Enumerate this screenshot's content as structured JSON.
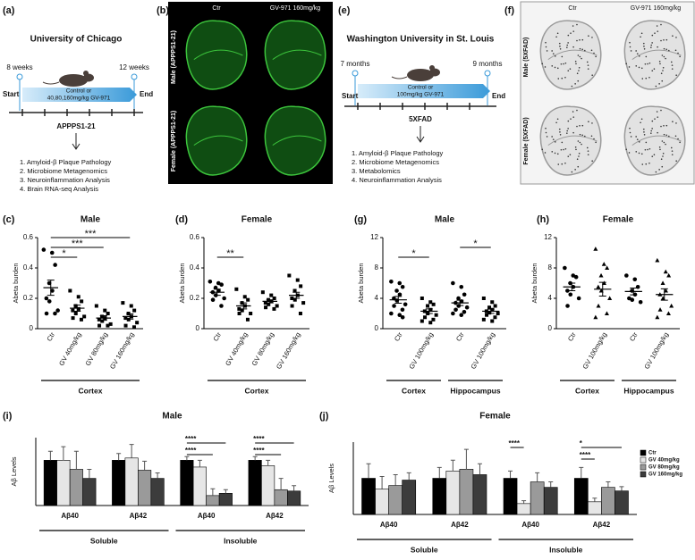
{
  "panels": {
    "a": {
      "label": "(a)",
      "title": "University of Chicago",
      "start_time": "8 weeks",
      "end_time": "12 weeks",
      "start": "Start",
      "end": "End",
      "treatment": [
        "Control or",
        "40,80,160mg/kg GV-971"
      ],
      "model": "APPPS1-21",
      "analyses": [
        "1.  Amyloid-β Plaque Pathology",
        "2.  Microbiome Metagenomics",
        "3.  Neuroinflammation Analysis",
        "4.  Brain RNA-seq Analysis"
      ]
    },
    "b": {
      "label": "(b)",
      "columns": [
        "Ctr",
        "GV-971 160mg/kg"
      ],
      "rows": [
        "Male (APPPS1-21)",
        "Female (APPPS1-21)"
      ]
    },
    "e": {
      "label": "(e)",
      "title": "Washington University in St. Louis",
      "start_time": "7 months",
      "end_time": "9 months",
      "start": "Start",
      "end": "End",
      "treatment": [
        "Control or",
        "100mg/kg GV-971"
      ],
      "model": "5XFAD",
      "analyses": [
        "1.  Amyloid-β Plaque Pathology",
        "2.  Microbiome Metagenomics",
        "3.  Metabolomics",
        "4.  Neuroinflammation Analysis"
      ]
    },
    "f": {
      "label": "(f)",
      "columns": [
        "Ctr",
        "GV-971 160mg/kg"
      ],
      "rows": [
        "Male (5XFAD)",
        "Female (5XFAD)"
      ]
    }
  },
  "chart_data": [
    {
      "type": "strip",
      "label": "(c)",
      "title": "Male",
      "ylabel": "Abeta burden",
      "ylim": [
        0,
        0.6
      ],
      "yticks": [
        0,
        0.2,
        0.4,
        0.6
      ],
      "categories": [
        "Ctr",
        "GV 40mg/kg",
        "GV 80mg/kg",
        "GV 160mg/kg"
      ],
      "sections": [
        "Cortex"
      ],
      "markers": [
        "circle",
        "square",
        "square",
        "square"
      ],
      "groups": [
        [
          0.52,
          0.5,
          0.42,
          0.3,
          0.25,
          0.2,
          0.18,
          0.12,
          0.1,
          0.1
        ],
        [
          0.25,
          0.21,
          0.18,
          0.15,
          0.13,
          0.12,
          0.1,
          0.08,
          0.07,
          0.06
        ],
        [
          0.15,
          0.12,
          0.1,
          0.08,
          0.07,
          0.06,
          0.05,
          0.03,
          0.02,
          0.02
        ],
        [
          0.17,
          0.15,
          0.12,
          0.1,
          0.08,
          0.07,
          0.06,
          0.04,
          0.02,
          0.01
        ]
      ],
      "means": [
        0.27,
        0.135,
        0.07,
        0.08
      ],
      "errors": [
        0.05,
        0.02,
        0.015,
        0.017
      ],
      "brackets": [
        {
          "from": 0,
          "to": 1,
          "label": "*"
        },
        {
          "from": 0,
          "to": 2,
          "label": "***"
        },
        {
          "from": 0,
          "to": 3,
          "label": "***"
        }
      ]
    },
    {
      "type": "strip",
      "label": "(d)",
      "title": "Female",
      "ylabel": "Abeta burden",
      "ylim": [
        0,
        0.6
      ],
      "yticks": [
        0,
        0.2,
        0.4,
        0.6
      ],
      "categories": [
        "Ctr",
        "GV 40mg/kg",
        "GV 80mg/kg",
        "GV 160mg/kg"
      ],
      "sections": [
        "Cortex"
      ],
      "markers": [
        "circle",
        "square",
        "square",
        "square"
      ],
      "groups": [
        [
          0.31,
          0.3,
          0.29,
          0.27,
          0.25,
          0.24,
          0.22,
          0.2,
          0.19,
          0.15
        ],
        [
          0.26,
          0.21,
          0.19,
          0.17,
          0.15,
          0.13,
          0.12,
          0.1,
          0.1,
          0.06
        ],
        [
          0.24,
          0.22,
          0.2,
          0.19,
          0.18,
          0.17,
          0.16,
          0.15,
          0.14,
          0.13
        ],
        [
          0.35,
          0.32,
          0.28,
          0.25,
          0.22,
          0.2,
          0.19,
          0.17,
          0.15,
          0.1
        ]
      ],
      "means": [
        0.24,
        0.15,
        0.18,
        0.22
      ],
      "errors": [
        0.02,
        0.02,
        0.01,
        0.02
      ],
      "brackets": [
        {
          "from": 0,
          "to": 1,
          "label": "**"
        }
      ]
    },
    {
      "type": "strip",
      "label": "(g)",
      "title": "Male",
      "ylabel": "Abeta burden",
      "ylim": [
        0,
        12
      ],
      "yticks": [
        0,
        4,
        8,
        12
      ],
      "categories": [
        "Ctr",
        "GV 100mg/kg",
        "Ctr",
        "GV 100mg/kg"
      ],
      "sections": [
        "Cortex",
        "Hippocampus"
      ],
      "markers": [
        "circle",
        "square",
        "circle",
        "square"
      ],
      "groups": [
        [
          6.2,
          6,
          5.5,
          5,
          4.5,
          4,
          3.7,
          3.2,
          3,
          2.5,
          2,
          1.8,
          1.5
        ],
        [
          4,
          3.5,
          3.2,
          3,
          2.5,
          2.3,
          2,
          1.8,
          1.5,
          1.2,
          1,
          0.8
        ],
        [
          6,
          5.5,
          4.5,
          4,
          3.6,
          3.4,
          3,
          2.8,
          2.5,
          2.2,
          2,
          1.8
        ],
        [
          4,
          3.5,
          3,
          2.8,
          2.5,
          2.3,
          2.1,
          2,
          1.8,
          1.5,
          1.2,
          1
        ]
      ],
      "means": [
        3.8,
        2.3,
        3.4,
        2.3
      ],
      "errors": [
        0.45,
        0.3,
        0.35,
        0.28
      ],
      "brackets": [
        {
          "from": 0,
          "to": 1,
          "label": "*"
        },
        {
          "from": 2,
          "to": 3,
          "label": "*"
        }
      ]
    },
    {
      "type": "strip",
      "label": "(h)",
      "title": "Female",
      "ylabel": "Abeta burden",
      "ylim": [
        0,
        12
      ],
      "yticks": [
        0,
        4,
        8,
        12
      ],
      "categories": [
        "Ctr",
        "GV 100mg/kg",
        "Ctr",
        "GV 100mg/kg"
      ],
      "sections": [
        "Cortex",
        "Hippocampus"
      ],
      "markers": [
        "circle",
        "triangle",
        "circle",
        "triangle"
      ],
      "groups": [
        [
          8,
          7,
          6.8,
          6,
          5.5,
          5,
          4.5,
          4,
          3
        ],
        [
          10.5,
          8.5,
          8,
          7,
          6,
          5.5,
          5,
          4,
          3,
          2,
          1.5
        ],
        [
          7,
          6.5,
          5.5,
          5,
          4.5,
          4,
          3.8,
          3.5
        ],
        [
          9,
          7.5,
          7,
          6,
          5,
          4.5,
          4,
          3,
          2.5,
          2,
          1.5
        ]
      ],
      "means": [
        5.5,
        5.2,
        4.9,
        4.5
      ],
      "errors": [
        0.5,
        0.9,
        0.45,
        0.75
      ],
      "brackets": []
    },
    {
      "type": "bar",
      "label": "(i)",
      "title": "Male",
      "ylabel": "Aβ Levels",
      "ylim": [
        0,
        1.5
      ],
      "categories": [
        "Aβ40",
        "Aβ42",
        "Aβ40",
        "Aβ42"
      ],
      "sections": [
        "Soluble",
        "Insoluble"
      ],
      "series": [
        {
          "color": "#000000",
          "values": [
            1,
            1,
            1,
            1
          ],
          "errors": [
            0.2,
            0.15,
            0.08,
            0.08
          ]
        },
        {
          "color": "#e6e6e6",
          "values": [
            1,
            1.05,
            0.85,
            0.88
          ],
          "errors": [
            0.3,
            0.3,
            0.15,
            0.12
          ]
        },
        {
          "color": "#9a9a9a",
          "values": [
            0.8,
            0.78,
            0.22,
            0.35
          ],
          "errors": [
            0.4,
            0.2,
            0.15,
            0.25
          ]
        },
        {
          "color": "#3c3c3c",
          "values": [
            0.6,
            0.6,
            0.27,
            0.32
          ],
          "errors": [
            0.2,
            0.12,
            0.08,
            0.12
          ]
        }
      ],
      "brackets": [
        {
          "category": 2,
          "from": 0,
          "to": 3,
          "label": "****"
        },
        {
          "category": 2,
          "from": 0,
          "to": 2,
          "label": "****"
        },
        {
          "category": 3,
          "from": 0,
          "to": 3,
          "label": "****"
        },
        {
          "category": 3,
          "from": 0,
          "to": 2,
          "label": "****"
        }
      ]
    },
    {
      "type": "bar",
      "label": "(j)",
      "title": "Female",
      "ylabel": "Aβ Levels",
      "ylim": [
        0,
        2
      ],
      "legend": "right",
      "categories": [
        "Aβ40",
        "Aβ42",
        "Aβ40",
        "Aβ42"
      ],
      "sections": [
        "Soluble",
        "Insoluble"
      ],
      "series": [
        {
          "name": "Ctr",
          "color": "#000000",
          "values": [
            1,
            1,
            1,
            1
          ],
          "errors": [
            0.4,
            0.3,
            0.2,
            0.3
          ]
        },
        {
          "name": "GV 40mg/kg",
          "color": "#e6e6e6",
          "values": [
            0.7,
            1.2,
            0.3,
            0.35
          ],
          "errors": [
            0.35,
            0.3,
            0.08,
            0.1
          ]
        },
        {
          "name": "GV 80mg/kg",
          "color": "#9a9a9a",
          "values": [
            0.8,
            1.25,
            0.9,
            0.75
          ],
          "errors": [
            0.3,
            0.55,
            0.25,
            0.15
          ]
        },
        {
          "name": "GV 160mg/kg",
          "color": "#3c3c3c",
          "values": [
            0.95,
            1.1,
            0.75,
            0.65
          ],
          "errors": [
            0.2,
            0.3,
            0.15,
            0.12
          ]
        }
      ],
      "brackets": [
        {
          "category": 2,
          "from": 0,
          "to": 1,
          "label": "****"
        },
        {
          "category": 3,
          "from": 0,
          "to": 3,
          "label": "*"
        },
        {
          "category": 3,
          "from": 0,
          "to": 1,
          "label": "****"
        }
      ]
    }
  ]
}
